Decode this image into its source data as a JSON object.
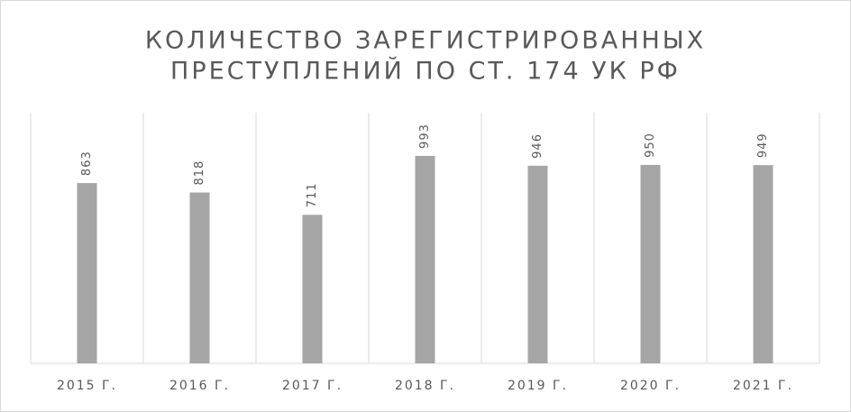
{
  "chart_data": {
    "type": "bar",
    "title": [
      "КОЛИЧЕСТВО ЗАРЕГИСТРИРОВАННЫХ",
      "ПРЕСТУПЛЕНИЙ ПО СТ. 174 УК РФ"
    ],
    "categories": [
      "2015 Г.",
      "2016 Г.",
      "2017 Г.",
      "2018 Г.",
      "2019 Г.",
      "2020 Г.",
      "2021 Г."
    ],
    "values": [
      863,
      818,
      711,
      993,
      946,
      950,
      949
    ],
    "color": "#a5a5a5",
    "ylim": [
      0,
      1200
    ]
  }
}
